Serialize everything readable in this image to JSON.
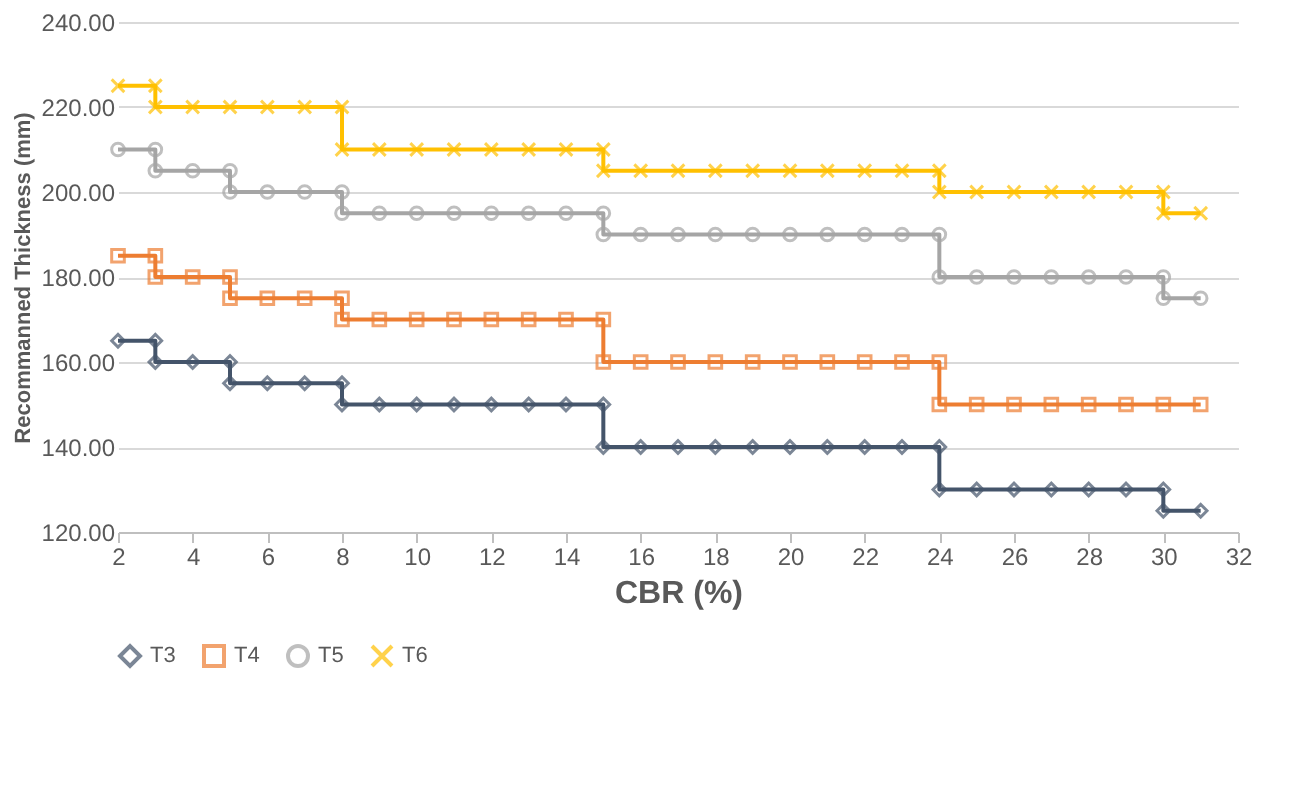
{
  "chart_data": {
    "type": "line",
    "xlabel": "CBR (%)",
    "ylabel": "Recommanned Thickness (mm)",
    "xlim": [
      2,
      32
    ],
    "xticks": [
      2,
      4,
      6,
      8,
      10,
      12,
      14,
      16,
      18,
      20,
      22,
      24,
      26,
      28,
      30,
      32
    ],
    "ylim": [
      120,
      240
    ],
    "yticks": [
      {
        "value": 120,
        "label": "120.00"
      },
      {
        "value": 140,
        "label": "140.00"
      },
      {
        "value": 160,
        "label": "160.00"
      },
      {
        "value": 180,
        "label": "180.00"
      },
      {
        "value": 200,
        "label": "200.00"
      },
      {
        "value": 220,
        "label": "220.00"
      },
      {
        "value": 240,
        "label": "240.00"
      }
    ],
    "grid": "y",
    "legend": "bottom",
    "line_style": "solid",
    "series": [
      {
        "name": "T3",
        "color": "#44546a",
        "marker": "diamond",
        "x": [
          2,
          3,
          3,
          4,
          5,
          5,
          6,
          7,
          8,
          8,
          9,
          10,
          11,
          12,
          13,
          14,
          15,
          15,
          16,
          17,
          18,
          19,
          20,
          21,
          22,
          23,
          24,
          24,
          25,
          26,
          27,
          28,
          29,
          30,
          30,
          31
        ],
        "values": [
          165,
          165,
          160,
          160,
          160,
          155,
          155,
          155,
          155,
          150,
          150,
          150,
          150,
          150,
          150,
          150,
          150,
          140,
          140,
          140,
          140,
          140,
          140,
          140,
          140,
          140,
          140,
          130,
          130,
          130,
          130,
          130,
          130,
          130,
          125,
          125
        ]
      },
      {
        "name": "T4",
        "color": "#ed7d31",
        "marker": "square",
        "x": [
          2,
          3,
          3,
          4,
          5,
          5,
          6,
          7,
          8,
          8,
          9,
          10,
          11,
          12,
          13,
          14,
          15,
          15,
          16,
          17,
          18,
          19,
          20,
          21,
          22,
          23,
          24,
          24,
          25,
          26,
          27,
          28,
          29,
          30,
          31
        ],
        "values": [
          185,
          185,
          180,
          180,
          180,
          175,
          175,
          175,
          175,
          170,
          170,
          170,
          170,
          170,
          170,
          170,
          170,
          160,
          160,
          160,
          160,
          160,
          160,
          160,
          160,
          160,
          160,
          150,
          150,
          150,
          150,
          150,
          150,
          150,
          150
        ]
      },
      {
        "name": "T5",
        "color": "#a5a5a5",
        "marker": "circle",
        "x": [
          2,
          3,
          3,
          4,
          5,
          5,
          6,
          7,
          8,
          8,
          9,
          10,
          11,
          12,
          13,
          14,
          15,
          15,
          16,
          17,
          18,
          19,
          20,
          21,
          22,
          23,
          24,
          24,
          25,
          26,
          27,
          28,
          29,
          30,
          30,
          31
        ],
        "values": [
          210,
          210,
          205,
          205,
          205,
          200,
          200,
          200,
          200,
          195,
          195,
          195,
          195,
          195,
          195,
          195,
          195,
          190,
          190,
          190,
          190,
          190,
          190,
          190,
          190,
          190,
          190,
          180,
          180,
          180,
          180,
          180,
          180,
          180,
          175,
          175
        ]
      },
      {
        "name": "T6",
        "color": "#ffc000",
        "marker": "cross",
        "x": [
          2,
          3,
          3,
          4,
          5,
          6,
          7,
          8,
          8,
          9,
          10,
          11,
          12,
          13,
          14,
          15,
          15,
          16,
          17,
          18,
          19,
          20,
          21,
          22,
          23,
          24,
          24,
          25,
          26,
          27,
          28,
          29,
          30,
          30,
          31
        ],
        "values": [
          225,
          225,
          220,
          220,
          220,
          220,
          220,
          220,
          210,
          210,
          210,
          210,
          210,
          210,
          210,
          210,
          205,
          205,
          205,
          205,
          205,
          205,
          205,
          205,
          205,
          205,
          200,
          200,
          200,
          200,
          200,
          200,
          200,
          195,
          195
        ]
      }
    ]
  }
}
